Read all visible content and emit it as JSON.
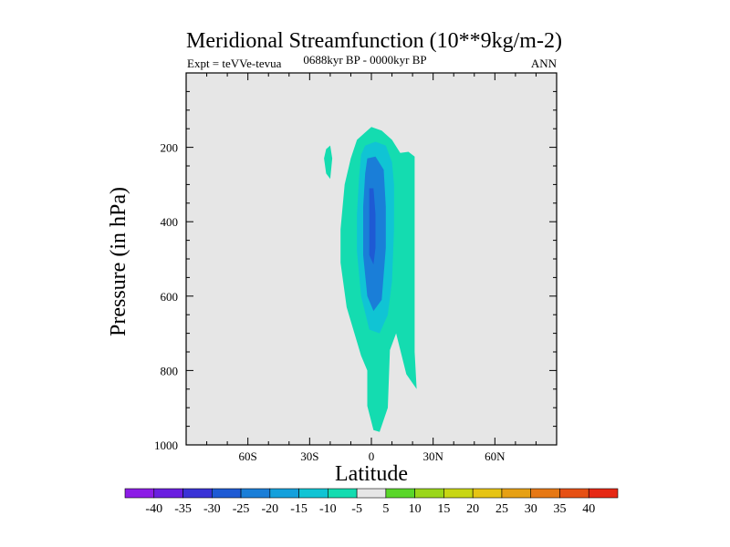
{
  "chart_data": {
    "type": "contour",
    "title": "Meridional Streamfunction (10**9kg/m-2)",
    "subtitle": "0688kyr BP - 0000kyr BP",
    "left_label": "Expt = teVVe-tevua",
    "right_label": "ANN",
    "xlabel": "Latitude",
    "ylabel": "Pressure (in hPa)",
    "xlim": [
      -90,
      90
    ],
    "ylim": [
      0,
      1000
    ],
    "y_reversed": true,
    "x_ticks": [
      {
        "value": -60,
        "label": "60S"
      },
      {
        "value": -30,
        "label": "30S"
      },
      {
        "value": 0,
        "label": "0"
      },
      {
        "value": 30,
        "label": "30N"
      },
      {
        "value": 60,
        "label": "60N"
      }
    ],
    "y_ticks": [
      {
        "value": 200,
        "label": "200"
      },
      {
        "value": 400,
        "label": "400"
      },
      {
        "value": 600,
        "label": "600"
      },
      {
        "value": 800,
        "label": "800"
      },
      {
        "value": 1000,
        "label": "1000"
      }
    ],
    "background_color": "#e6e6e6",
    "colorbar": {
      "labels": [
        "-40",
        "-35",
        "-30",
        "-25",
        "-20",
        "-15",
        "-10",
        "-5",
        "5",
        "10",
        "15",
        "20",
        "25",
        "30",
        "35",
        "40"
      ],
      "colors": [
        "#8c1ce6",
        "#6a1ee0",
        "#3a32d6",
        "#1e5ad4",
        "#1a7ed8",
        "#14a0dc",
        "#10c4d4",
        "#14dcb0",
        "#e6e6e6",
        "#5ad62a",
        "#9ad61a",
        "#c8d614",
        "#e6c414",
        "#e6a014",
        "#e67814",
        "#e65014",
        "#e62814"
      ]
    },
    "contour_regions": [
      {
        "level": "-10 to -5",
        "color": "#14dcb0",
        "points": [
          [
            -22,
            205
          ],
          [
            -20,
            195
          ],
          [
            -19,
            230
          ],
          [
            -20,
            285
          ],
          [
            -22,
            270
          ],
          [
            -23,
            230
          ]
        ]
      },
      {
        "level": "-10 to -5",
        "color": "#14dcb0",
        "points": [
          [
            -3,
            160
          ],
          [
            0,
            145
          ],
          [
            5,
            155
          ],
          [
            10,
            180
          ],
          [
            14,
            215
          ],
          [
            18,
            212
          ],
          [
            21,
            225
          ],
          [
            21,
            420
          ],
          [
            21,
            600
          ],
          [
            21,
            750
          ],
          [
            22,
            850
          ],
          [
            17,
            810
          ],
          [
            12,
            700
          ],
          [
            9,
            745
          ],
          [
            8,
            900
          ],
          [
            4,
            965
          ],
          [
            1,
            960
          ],
          [
            -2,
            895
          ],
          [
            -2,
            800
          ],
          [
            -5,
            760
          ],
          [
            -12,
            630
          ],
          [
            -15,
            510
          ],
          [
            -15,
            420
          ],
          [
            -13,
            300
          ],
          [
            -10,
            230
          ],
          [
            -7,
            180
          ]
        ]
      },
      {
        "level": "-15 to -10",
        "color": "#10c4d4",
        "points": [
          [
            -3,
            195
          ],
          [
            2,
            185
          ],
          [
            7,
            195
          ],
          [
            10,
            240
          ],
          [
            11,
            300
          ],
          [
            11,
            420
          ],
          [
            10,
            560
          ],
          [
            8,
            650
          ],
          [
            4,
            700
          ],
          [
            -1,
            690
          ],
          [
            -5,
            600
          ],
          [
            -7,
            480
          ],
          [
            -7,
            380
          ],
          [
            -6,
            280
          ],
          [
            -5,
            220
          ]
        ]
      },
      {
        "level": "-20 to -15",
        "color": "#1a7ed8",
        "points": [
          [
            -2,
            230
          ],
          [
            2,
            225
          ],
          [
            6,
            260
          ],
          [
            7,
            360
          ],
          [
            7,
            470
          ],
          [
            5,
            610
          ],
          [
            1,
            640
          ],
          [
            -2,
            600
          ],
          [
            -4,
            490
          ],
          [
            -4,
            360
          ],
          [
            -3,
            270
          ]
        ]
      },
      {
        "level": "-25 to -20",
        "color": "#1e5ad4",
        "points": [
          [
            -1,
            310
          ],
          [
            1,
            310
          ],
          [
            2,
            380
          ],
          [
            2,
            470
          ],
          [
            1,
            515
          ],
          [
            -1,
            490
          ],
          [
            -1,
            400
          ]
        ]
      }
    ]
  }
}
